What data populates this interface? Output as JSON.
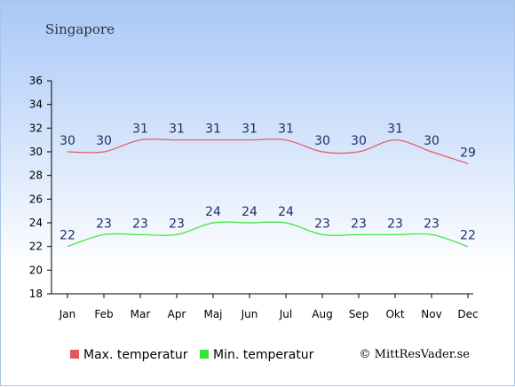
{
  "chart_data": {
    "type": "line",
    "title": "Singapore",
    "categories": [
      "Jan",
      "Feb",
      "Mar",
      "Apr",
      "Maj",
      "Jun",
      "Jul",
      "Aug",
      "Sep",
      "Okt",
      "Nov",
      "Dec"
    ],
    "series": [
      {
        "name": "Max. temperatur",
        "color": "#e05a5a",
        "values": [
          30,
          30,
          31,
          31,
          31,
          31,
          31,
          30,
          30,
          31,
          30,
          29
        ]
      },
      {
        "name": "Min. temperatur",
        "color": "#33e633",
        "values": [
          22,
          23,
          23,
          23,
          24,
          24,
          24,
          23,
          23,
          23,
          23,
          22
        ]
      }
    ],
    "ylim": [
      18,
      36
    ],
    "yticks": [
      18,
      20,
      22,
      24,
      26,
      28,
      30,
      32,
      34,
      36
    ],
    "grid": false,
    "legend_position": "bottom-left"
  },
  "credit": "© MittResVader.se"
}
